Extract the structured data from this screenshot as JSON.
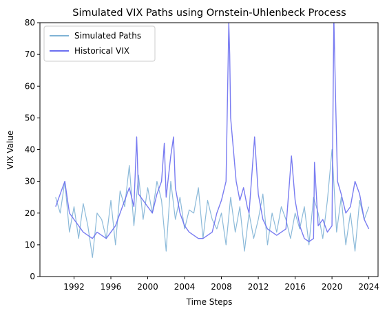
{
  "chart_data": {
    "type": "line",
    "title": "Simulated VIX Paths using Ornstein-Uhlenbeck Process",
    "xlabel": "Time Steps",
    "ylabel": "VIX Value",
    "xlim": [
      1988.3,
      2025.0
    ],
    "ylim": [
      0,
      80
    ],
    "x_ticks": [
      1992,
      1996,
      2000,
      2004,
      2008,
      2012,
      2016,
      2020,
      2024
    ],
    "y_ticks": [
      0,
      10,
      20,
      30,
      40,
      50,
      60,
      70,
      80
    ],
    "grid": false,
    "legend_position": "upper-left",
    "series": [
      {
        "name": "Simulated Paths",
        "color": "#7fb3d5",
        "line_width": 1.2,
        "opacity": 0.9,
        "note_shape": "noisy mean-reverting paths",
        "x": [
          1990.0,
          1990.5,
          1991.0,
          1991.5,
          1992.0,
          1992.5,
          1993.0,
          1993.5,
          1994.0,
          1994.5,
          1995.0,
          1995.5,
          1996.0,
          1996.5,
          1997.0,
          1997.5,
          1998.0,
          1998.5,
          1999.0,
          1999.5,
          2000.0,
          2000.5,
          2001.0,
          2001.5,
          2002.0,
          2002.5,
          2003.0,
          2003.5,
          2004.0,
          2004.5,
          2005.0,
          2005.5,
          2006.0,
          2006.5,
          2007.0,
          2007.5,
          2008.0,
          2008.5,
          2009.0,
          2009.5,
          2010.0,
          2010.5,
          2011.0,
          2011.5,
          2012.0,
          2012.5,
          2013.0,
          2013.5,
          2014.0,
          2014.5,
          2015.0,
          2015.5,
          2016.0,
          2016.5,
          2017.0,
          2017.5,
          2018.0,
          2018.5,
          2019.0,
          2019.5,
          2020.0,
          2020.5,
          2021.0,
          2021.5,
          2022.0,
          2022.5,
          2023.0,
          2023.5,
          2024.0
        ],
        "values": [
          25,
          20,
          30,
          14,
          22,
          12,
          23,
          16,
          6,
          20,
          18,
          12,
          24,
          10,
          27,
          22,
          35,
          16,
          32,
          18,
          28,
          20,
          30,
          24,
          8,
          30,
          18,
          25,
          15,
          21,
          20,
          28,
          12,
          24,
          18,
          15,
          20,
          10,
          25,
          14,
          22,
          8,
          20,
          12,
          18,
          26,
          10,
          20,
          14,
          22,
          18,
          12,
          20,
          15,
          22,
          10,
          25,
          20,
          12,
          24,
          40,
          14,
          25,
          10,
          20,
          8,
          24,
          18,
          22
        ]
      },
      {
        "name": "Historical VIX",
        "color": "#6a6ef0",
        "line_width": 1.4,
        "opacity": 0.9,
        "note_shape": "historical series with spikes",
        "x": [
          1990.0,
          1990.5,
          1991.0,
          1991.5,
          1992.0,
          1992.5,
          1993.0,
          1993.5,
          1994.0,
          1994.5,
          1995.0,
          1995.5,
          1996.0,
          1996.5,
          1997.0,
          1997.5,
          1998.0,
          1998.5,
          1998.8,
          1999.0,
          1999.5,
          2000.0,
          2000.5,
          2001.0,
          2001.5,
          2001.8,
          2002.0,
          2002.5,
          2002.8,
          2003.0,
          2003.5,
          2004.0,
          2004.5,
          2005.0,
          2005.5,
          2006.0,
          2006.5,
          2007.0,
          2007.5,
          2008.0,
          2008.5,
          2008.8,
          2008.9,
          2009.0,
          2009.3,
          2009.6,
          2010.0,
          2010.4,
          2010.8,
          2011.0,
          2011.6,
          2012.0,
          2012.5,
          2013.0,
          2013.5,
          2014.0,
          2014.5,
          2015.0,
          2015.6,
          2016.0,
          2016.5,
          2017.0,
          2017.5,
          2018.0,
          2018.1,
          2018.5,
          2019.0,
          2019.5,
          2020.0,
          2020.2,
          2020.4,
          2020.6,
          2021.0,
          2021.5,
          2022.0,
          2022.5,
          2023.0,
          2023.5,
          2024.0
        ],
        "values": [
          22,
          26,
          30,
          20,
          18,
          16,
          14,
          13,
          12,
          14,
          13,
          12,
          14,
          16,
          20,
          24,
          28,
          22,
          44,
          26,
          24,
          22,
          20,
          26,
          30,
          42,
          25,
          38,
          44,
          28,
          20,
          16,
          14,
          13,
          12,
          12,
          13,
          14,
          20,
          24,
          30,
          80,
          70,
          50,
          40,
          30,
          24,
          28,
          22,
          20,
          44,
          26,
          18,
          15,
          14,
          13,
          14,
          15,
          38,
          24,
          16,
          12,
          11,
          12,
          36,
          16,
          18,
          14,
          16,
          82,
          55,
          30,
          26,
          20,
          22,
          30,
          26,
          18,
          15
        ]
      }
    ]
  }
}
